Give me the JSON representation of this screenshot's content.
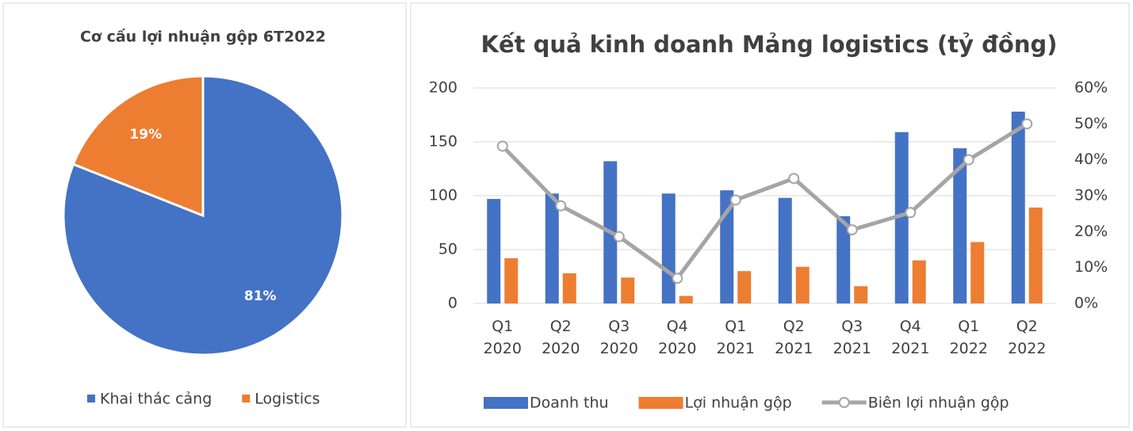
{
  "chart_data": [
    {
      "type": "pie",
      "title": "Cơ cấu lợi nhuận gộp 6T2022",
      "categories": [
        "Khai thác cảng",
        "Logistics"
      ],
      "values": [
        81,
        19
      ],
      "value_labels": [
        "81%",
        "19%"
      ],
      "colors": [
        "#4472c4",
        "#ed7d31"
      ],
      "legend": "bottom"
    },
    {
      "type": "combo",
      "title": "Kết quả kinh doanh Mảng logistics (tỷ đồng)",
      "categories": [
        "Q1 2020",
        "Q2 2020",
        "Q3 2020",
        "Q4 2020",
        "Q1 2021",
        "Q2 2021",
        "Q3 2021",
        "Q4 2021",
        "Q1 2022",
        "Q2 2022"
      ],
      "series": [
        {
          "name": "Doanh thu",
          "color": "#4472c4",
          "kind": "bar",
          "values": [
            97,
            102,
            132,
            102,
            105,
            98,
            81,
            159,
            144,
            178
          ]
        },
        {
          "name": "Lợi nhuận gộp",
          "color": "#ed7d31",
          "kind": "bar",
          "values": [
            42,
            28,
            24,
            7,
            30,
            34,
            16,
            40,
            57,
            89
          ]
        },
        {
          "name": "Biên lợi nhuận gộp",
          "color": "#a5a5a5",
          "kind": "line",
          "axis": "y2",
          "values": [
            43.8,
            27.2,
            18.6,
            7.0,
            28.8,
            34.8,
            20.5,
            25.3,
            40.0,
            50.0
          ]
        }
      ],
      "ylim": [
        0,
        200
      ],
      "yticks": [
        0,
        50,
        100,
        150,
        200
      ],
      "y2lim": [
        0,
        60
      ],
      "y2ticks": [
        {
          "value": 0,
          "label": "0%"
        },
        {
          "value": 10,
          "label": "10%"
        },
        {
          "value": 20,
          "label": "20%"
        },
        {
          "value": 30,
          "label": "30%"
        },
        {
          "value": 40,
          "label": "40%"
        },
        {
          "value": 50,
          "label": "50%"
        },
        {
          "value": 60,
          "label": "60%"
        }
      ],
      "grid": true,
      "legend": "bottom"
    }
  ]
}
